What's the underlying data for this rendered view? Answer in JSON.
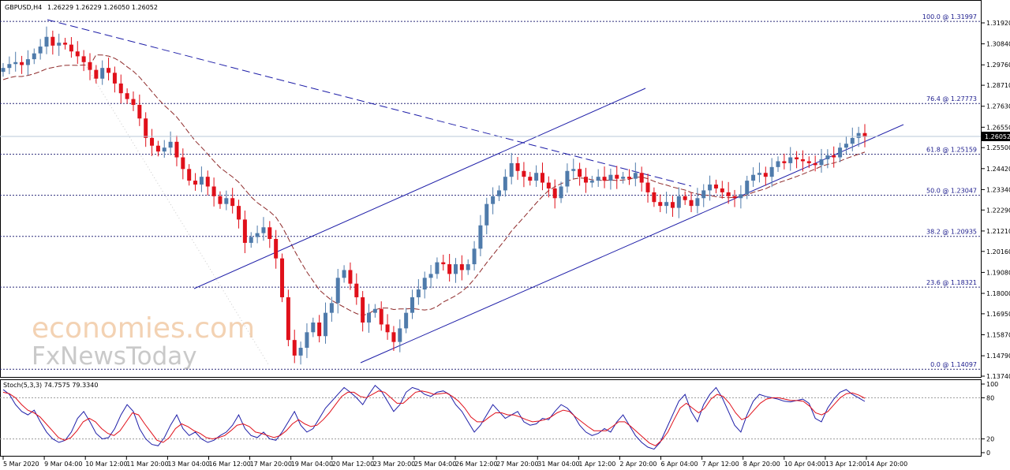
{
  "header": {
    "symbol": "GBPUSD,H4",
    "ohlc": "1.26229 1.26229 1.26050 1.26052"
  },
  "price_badge": "1.26052",
  "watermark": {
    "line1": "economies.com",
    "line2": "FxNewsToday"
  },
  "colors": {
    "bull": "#4f7bab",
    "bear": "#e0101a",
    "ma": "#8e2a2a",
    "trend": "#1e1ea8",
    "grid": "#2b2b7a",
    "stoch_main": "#1e1ea8",
    "stoch_signal": "#e0101a"
  },
  "chart_data": [
    {
      "type": "candlestick",
      "title": "GBPUSD,H4",
      "ylim": [
        1.137,
        1.325
      ],
      "y_ticks": [
        "1.31920",
        "1.30840",
        "1.29760",
        "1.28710",
        "1.27630",
        "1.26550",
        "1.25500",
        "1.24420",
        "1.23340",
        "1.22290",
        "1.21210",
        "1.20160",
        "1.19080",
        "1.18000",
        "1.16950",
        "1.15870",
        "1.14790",
        "1.13740"
      ],
      "x_labels": [
        "5 Mar 2020",
        "9 Mar 04:00",
        "10 Mar 12:00",
        "11 Mar 20:00",
        "13 Mar 04:00",
        "16 Mar 12:00",
        "17 Mar 20:00",
        "19 Mar 04:00",
        "20 Mar 12:00",
        "23 Mar 20:00",
        "25 Mar 04:00",
        "26 Mar 12:00",
        "27 Mar 20:00",
        "31 Mar 04:00",
        "1 Apr 12:00",
        "2 Apr 20:00",
        "6 Apr 04:00",
        "7 Apr 12:00",
        "8 Apr 20:00",
        "10 Apr 04:00",
        "13 Apr 12:00",
        "14 Apr 20:00"
      ],
      "closes": [
        1.296,
        1.298,
        1.299,
        1.2975,
        1.3005,
        1.3035,
        1.307,
        1.312,
        1.3075,
        1.309,
        1.308,
        1.3045,
        1.302,
        1.299,
        1.295,
        1.2905,
        1.296,
        1.2935,
        1.288,
        1.283,
        1.28,
        1.277,
        1.27,
        1.26,
        1.256,
        1.253,
        1.255,
        1.258,
        1.25,
        1.244,
        1.238,
        1.236,
        1.24,
        1.235,
        1.23,
        1.226,
        1.229,
        1.225,
        1.218,
        1.206,
        1.209,
        1.211,
        1.214,
        1.208,
        1.198,
        1.178,
        1.156,
        1.148,
        1.152,
        1.16,
        1.165,
        1.158,
        1.17,
        1.175,
        1.188,
        1.192,
        1.185,
        1.178,
        1.165,
        1.17,
        1.172,
        1.164,
        1.16,
        1.155,
        1.162,
        1.17,
        1.178,
        1.182,
        1.188,
        1.19,
        1.196,
        1.195,
        1.19,
        1.195,
        1.192,
        1.195,
        1.203,
        1.215,
        1.226,
        1.23,
        1.233,
        1.24,
        1.247,
        1.243,
        1.24,
        1.238,
        1.242,
        1.237,
        1.234,
        1.229,
        1.235,
        1.243,
        1.244,
        1.24,
        1.237,
        1.238,
        1.24,
        1.238,
        1.241,
        1.239,
        1.24,
        1.239,
        1.242,
        1.237,
        1.232,
        1.227,
        1.225,
        1.227,
        1.224,
        1.23,
        1.228,
        1.225,
        1.229,
        1.233,
        1.236,
        1.234,
        1.232,
        1.23,
        1.229,
        1.231,
        1.238,
        1.241,
        1.242,
        1.24,
        1.245,
        1.248,
        1.247,
        1.25,
        1.249,
        1.248,
        1.247,
        1.246,
        1.249,
        1.251,
        1.25,
        1.255,
        1.257,
        1.26,
        1.2625,
        1.2605
      ],
      "ma_visible": true,
      "fibonacci": [
        {
          "label": "100.0 @ 1.31997",
          "price": 1.31997
        },
        {
          "label": "76.4 @ 1.27773",
          "price": 1.27773
        },
        {
          "label": "61.8 @ 1.25159",
          "price": 1.25159
        },
        {
          "label": "50.0 @ 1.23047",
          "price": 1.23047
        },
        {
          "label": "38.2 @ 1.20935",
          "price": 1.20935
        },
        {
          "label": "23.6 @ 1.18321",
          "price": 1.18321
        },
        {
          "label": "0.0 @ 1.14097",
          "price": 1.14097
        }
      ]
    },
    {
      "type": "line",
      "title": "Stoch(5,3,3) 74.7575 79.3340",
      "ylim": [
        0,
        100
      ],
      "y_ticks": [
        "100",
        "80",
        "20",
        "0"
      ],
      "levels": [
        80,
        20
      ],
      "series": [
        {
          "values": [
            92,
            85,
            70,
            60,
            55,
            62,
            45,
            30,
            20,
            15,
            18,
            30,
            50,
            60,
            45,
            28,
            20,
            22,
            35,
            55,
            70,
            60,
            35,
            20,
            12,
            10,
            22,
            40,
            55,
            35,
            25,
            30,
            20,
            15,
            18,
            25,
            30,
            40,
            55,
            35,
            25,
            22,
            30,
            20,
            18,
            30,
            45,
            60,
            40,
            30,
            35,
            50,
            65,
            75,
            85,
            95,
            88,
            80,
            70,
            85,
            98,
            90,
            75,
            60,
            70,
            88,
            95,
            92,
            85,
            82,
            88,
            90,
            85,
            70,
            60,
            45,
            30,
            40,
            55,
            70,
            60,
            50,
            55,
            60,
            45,
            40,
            42,
            50,
            48,
            60,
            70,
            65,
            55,
            40,
            30,
            25,
            28,
            35,
            30,
            45,
            55,
            40,
            25,
            15,
            8,
            5,
            15,
            35,
            55,
            75,
            85,
            60,
            45,
            70,
            85,
            95,
            80,
            60,
            40,
            30,
            55,
            75,
            85,
            82,
            80,
            78,
            75,
            74,
            76,
            78,
            72,
            50,
            45,
            65,
            78,
            88,
            92,
            85,
            80,
            74.76
          ]
        },
        {
          "values": [
            88,
            86,
            80,
            70,
            62,
            58,
            52,
            42,
            32,
            22,
            18,
            22,
            32,
            45,
            50,
            45,
            35,
            28,
            25,
            32,
            45,
            58,
            55,
            42,
            30,
            18,
            15,
            22,
            35,
            42,
            38,
            32,
            28,
            22,
            20,
            22,
            25,
            32,
            40,
            42,
            38,
            30,
            28,
            25,
            22,
            25,
            32,
            42,
            48,
            42,
            38,
            40,
            48,
            58,
            70,
            82,
            88,
            88,
            82,
            80,
            85,
            90,
            88,
            80,
            72,
            72,
            80,
            88,
            90,
            88,
            85,
            86,
            87,
            82,
            75,
            65,
            52,
            45,
            45,
            52,
            58,
            58,
            55,
            55,
            52,
            48,
            45,
            46,
            48,
            52,
            58,
            62,
            60,
            52,
            45,
            38,
            32,
            32,
            32,
            38,
            45,
            45,
            38,
            30,
            22,
            14,
            10,
            18,
            30,
            48,
            65,
            72,
            65,
            58,
            65,
            78,
            85,
            82,
            72,
            58,
            48,
            52,
            62,
            72,
            78,
            80,
            80,
            78,
            76,
            76,
            75,
            68,
            58,
            55,
            60,
            70,
            80,
            86,
            87,
            84,
            79.33
          ]
        }
      ]
    }
  ]
}
